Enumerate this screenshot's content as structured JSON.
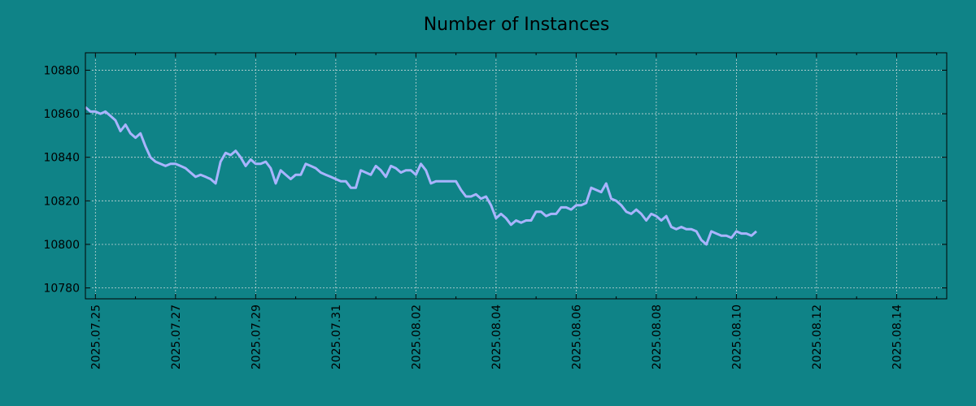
{
  "chart_data": {
    "type": "line",
    "title": "Number of Instances",
    "xlabel": "",
    "ylabel": "",
    "grid": true,
    "background": "#0f8387",
    "line_color": "#a9b4ff",
    "xlim": [
      "2025-07-24 18:00",
      "2025-08-15 06:00"
    ],
    "ylim": [
      10775,
      10888
    ],
    "x_tick_labels": [
      "2025.07.25",
      "2025.07.27",
      "2025.07.29",
      "2025.07.31",
      "2025.08.02",
      "2025.08.04",
      "2025.08.06",
      "2025.08.08",
      "2025.08.10",
      "2025.08.12",
      "2025.08.14"
    ],
    "y_ticks": [
      10780,
      10800,
      10820,
      10840,
      10860,
      10880
    ],
    "series": [
      {
        "name": "",
        "points": [
          [
            "2025-07-24 18:00",
            10863
          ],
          [
            "2025-07-24 21:00",
            10861
          ],
          [
            "2025-07-25 00:00",
            10861
          ],
          [
            "2025-07-25 03:00",
            10860
          ],
          [
            "2025-07-25 06:00",
            10861
          ],
          [
            "2025-07-25 09:00",
            10859
          ],
          [
            "2025-07-25 12:00",
            10857
          ],
          [
            "2025-07-25 15:00",
            10852
          ],
          [
            "2025-07-25 18:00",
            10855
          ],
          [
            "2025-07-25 21:00",
            10851
          ],
          [
            "2025-07-26 00:00",
            10849
          ],
          [
            "2025-07-26 03:00",
            10851
          ],
          [
            "2025-07-26 06:00",
            10845
          ],
          [
            "2025-07-26 09:00",
            10840
          ],
          [
            "2025-07-26 12:00",
            10838
          ],
          [
            "2025-07-26 15:00",
            10837
          ],
          [
            "2025-07-26 18:00",
            10836
          ],
          [
            "2025-07-26 21:00",
            10837
          ],
          [
            "2025-07-27 00:00",
            10837
          ],
          [
            "2025-07-27 03:00",
            10836
          ],
          [
            "2025-07-27 06:00",
            10835
          ],
          [
            "2025-07-27 09:00",
            10833
          ],
          [
            "2025-07-27 12:00",
            10831
          ],
          [
            "2025-07-27 15:00",
            10832
          ],
          [
            "2025-07-27 18:00",
            10831
          ],
          [
            "2025-07-27 21:00",
            10830
          ],
          [
            "2025-07-28 00:00",
            10828
          ],
          [
            "2025-07-28 03:00",
            10838
          ],
          [
            "2025-07-28 06:00",
            10842
          ],
          [
            "2025-07-28 09:00",
            10841
          ],
          [
            "2025-07-28 12:00",
            10843
          ],
          [
            "2025-07-28 15:00",
            10840
          ],
          [
            "2025-07-28 18:00",
            10836
          ],
          [
            "2025-07-28 21:00",
            10839
          ],
          [
            "2025-07-29 00:00",
            10837
          ],
          [
            "2025-07-29 03:00",
            10837
          ],
          [
            "2025-07-29 06:00",
            10838
          ],
          [
            "2025-07-29 09:00",
            10835
          ],
          [
            "2025-07-29 12:00",
            10828
          ],
          [
            "2025-07-29 15:00",
            10834
          ],
          [
            "2025-07-29 18:00",
            10832
          ],
          [
            "2025-07-29 21:00",
            10830
          ],
          [
            "2025-07-30 00:00",
            10832
          ],
          [
            "2025-07-30 03:00",
            10832
          ],
          [
            "2025-07-30 06:00",
            10837
          ],
          [
            "2025-07-30 09:00",
            10836
          ],
          [
            "2025-07-30 12:00",
            10835
          ],
          [
            "2025-07-30 15:00",
            10833
          ],
          [
            "2025-07-30 18:00",
            10832
          ],
          [
            "2025-07-30 21:00",
            10831
          ],
          [
            "2025-07-31 00:00",
            10830
          ],
          [
            "2025-07-31 03:00",
            10829
          ],
          [
            "2025-07-31 06:00",
            10829
          ],
          [
            "2025-07-31 09:00",
            10826
          ],
          [
            "2025-07-31 12:00",
            10826
          ],
          [
            "2025-07-31 15:00",
            10834
          ],
          [
            "2025-07-31 18:00",
            10833
          ],
          [
            "2025-07-31 21:00",
            10832
          ],
          [
            "2025-08-01 00:00",
            10836
          ],
          [
            "2025-08-01 03:00",
            10834
          ],
          [
            "2025-08-01 06:00",
            10831
          ],
          [
            "2025-08-01 09:00",
            10836
          ],
          [
            "2025-08-01 12:00",
            10835
          ],
          [
            "2025-08-01 15:00",
            10833
          ],
          [
            "2025-08-01 18:00",
            10834
          ],
          [
            "2025-08-01 21:00",
            10834
          ],
          [
            "2025-08-02 00:00",
            10832
          ],
          [
            "2025-08-02 03:00",
            10837
          ],
          [
            "2025-08-02 06:00",
            10834
          ],
          [
            "2025-08-02 09:00",
            10828
          ],
          [
            "2025-08-02 12:00",
            10829
          ],
          [
            "2025-08-02 15:00",
            10829
          ],
          [
            "2025-08-02 18:00",
            10829
          ],
          [
            "2025-08-02 21:00",
            10829
          ],
          [
            "2025-08-03 00:00",
            10829
          ],
          [
            "2025-08-03 03:00",
            10825
          ],
          [
            "2025-08-03 06:00",
            10822
          ],
          [
            "2025-08-03 09:00",
            10822
          ],
          [
            "2025-08-03 12:00",
            10823
          ],
          [
            "2025-08-03 15:00",
            10821
          ],
          [
            "2025-08-03 18:00",
            10822
          ],
          [
            "2025-08-03 21:00",
            10818
          ],
          [
            "2025-08-04 00:00",
            10812
          ],
          [
            "2025-08-04 03:00",
            10814
          ],
          [
            "2025-08-04 06:00",
            10812
          ],
          [
            "2025-08-04 09:00",
            10809
          ],
          [
            "2025-08-04 12:00",
            10811
          ],
          [
            "2025-08-04 15:00",
            10810
          ],
          [
            "2025-08-04 18:00",
            10811
          ],
          [
            "2025-08-04 21:00",
            10811
          ],
          [
            "2025-08-05 00:00",
            10815
          ],
          [
            "2025-08-05 03:00",
            10815
          ],
          [
            "2025-08-05 06:00",
            10813
          ],
          [
            "2025-08-05 09:00",
            10814
          ],
          [
            "2025-08-05 12:00",
            10814
          ],
          [
            "2025-08-05 15:00",
            10817
          ],
          [
            "2025-08-05 18:00",
            10817
          ],
          [
            "2025-08-05 21:00",
            10816
          ],
          [
            "2025-08-06 00:00",
            10818
          ],
          [
            "2025-08-06 03:00",
            10818
          ],
          [
            "2025-08-06 06:00",
            10819
          ],
          [
            "2025-08-06 09:00",
            10826
          ],
          [
            "2025-08-06 12:00",
            10825
          ],
          [
            "2025-08-06 15:00",
            10824
          ],
          [
            "2025-08-06 18:00",
            10828
          ],
          [
            "2025-08-06 21:00",
            10821
          ],
          [
            "2025-08-07 00:00",
            10820
          ],
          [
            "2025-08-07 03:00",
            10818
          ],
          [
            "2025-08-07 06:00",
            10815
          ],
          [
            "2025-08-07 09:00",
            10814
          ],
          [
            "2025-08-07 12:00",
            10816
          ],
          [
            "2025-08-07 15:00",
            10814
          ],
          [
            "2025-08-07 18:00",
            10811
          ],
          [
            "2025-08-07 21:00",
            10814
          ],
          [
            "2025-08-08 00:00",
            10813
          ],
          [
            "2025-08-08 03:00",
            10811
          ],
          [
            "2025-08-08 06:00",
            10813
          ],
          [
            "2025-08-08 09:00",
            10808
          ],
          [
            "2025-08-08 12:00",
            10807
          ],
          [
            "2025-08-08 15:00",
            10808
          ],
          [
            "2025-08-08 18:00",
            10807
          ],
          [
            "2025-08-08 21:00",
            10807
          ],
          [
            "2025-08-09 00:00",
            10806
          ],
          [
            "2025-08-09 03:00",
            10802
          ],
          [
            "2025-08-09 06:00",
            10800
          ],
          [
            "2025-08-09 09:00",
            10806
          ],
          [
            "2025-08-09 12:00",
            10805
          ],
          [
            "2025-08-09 15:00",
            10804
          ],
          [
            "2025-08-09 18:00",
            10804
          ],
          [
            "2025-08-09 21:00",
            10803
          ],
          [
            "2025-08-10 00:00",
            10806
          ],
          [
            "2025-08-10 03:00",
            10805
          ],
          [
            "2025-08-10 06:00",
            10805
          ],
          [
            "2025-08-10 09:00",
            10804
          ],
          [
            "2025-08-10 12:00",
            10806
          ]
        ]
      }
    ]
  }
}
